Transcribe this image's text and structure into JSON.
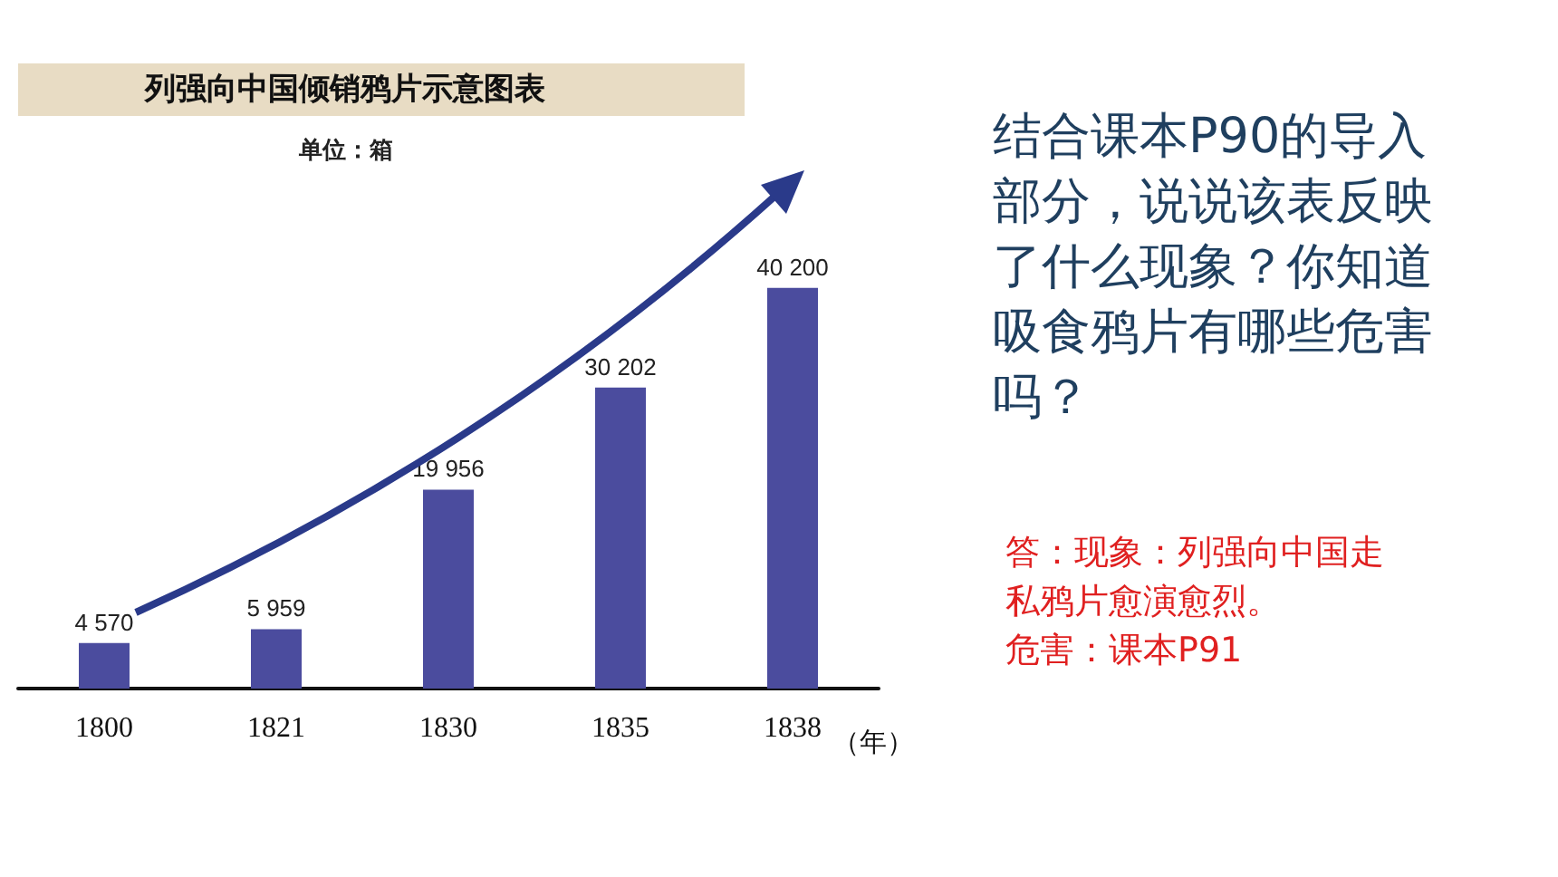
{
  "chart_data": {
    "type": "bar",
    "title": "列强向中国倾销鸦片示意图表",
    "subtitle": "单位：箱",
    "xlabel": "（年）",
    "categories": [
      "1800",
      "1821",
      "1830",
      "1835",
      "1838"
    ],
    "values": [
      4570,
      5959,
      19956,
      30202,
      40200
    ],
    "value_labels": [
      "4 570",
      "5 959",
      "19 956",
      "30 202",
      "40 200"
    ],
    "color": "#4b4c9e",
    "annotations": [
      "结合课本P90的导入部分，说说该表反映了什么现象？你知道吸食鸦片有哪些危害吗？",
      "答：现象：列强向中国走私鸦片愈演愈烈。",
      "危害：课本P91"
    ]
  }
}
